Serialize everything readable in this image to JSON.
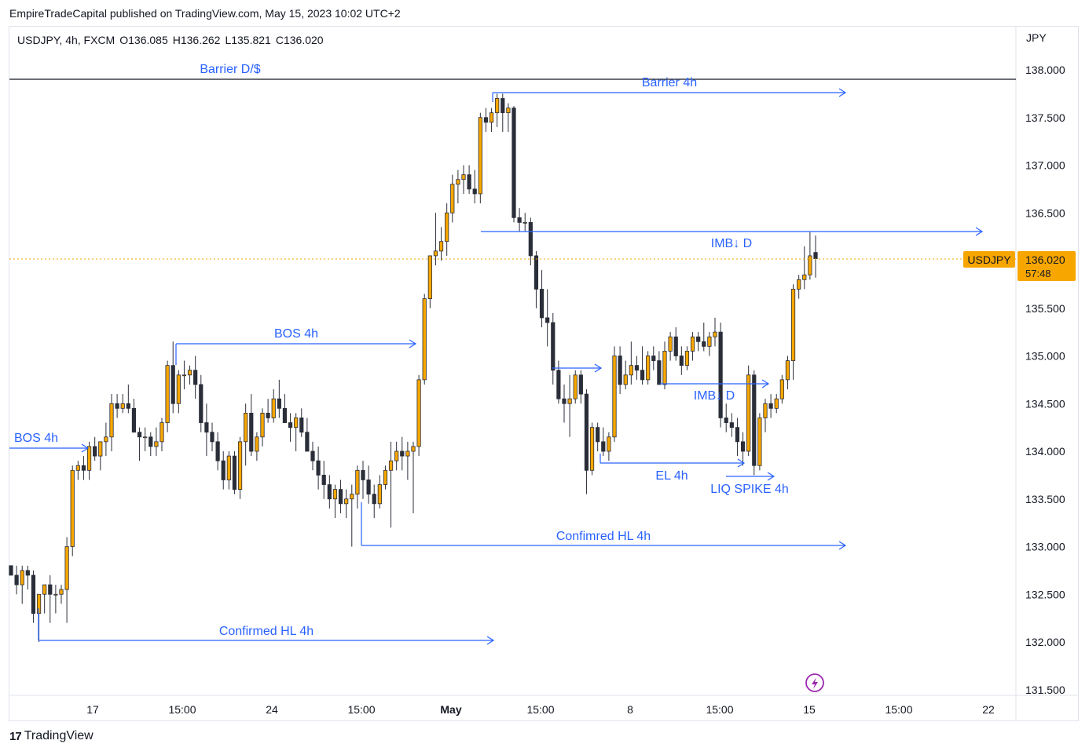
{
  "header": {
    "publish_text": "EmpireTradeCapital published on TradingView.com, May 15, 2023 10:02 UTC+2"
  },
  "footer": {
    "brand": "TradingView",
    "logo_glyph": "17"
  },
  "chart_data": {
    "type": "candlestick",
    "title": "USDJPY, 4h, FXCM",
    "ohlc_label": {
      "o": "O136.085",
      "h": "H136.262",
      "l": "L135.821",
      "c": "C136.020"
    },
    "currency": "JPY",
    "y_ticks": [
      "138.000",
      "137.500",
      "137.000",
      "136.500",
      "135.500",
      "135.000",
      "134.500",
      "134.000",
      "133.500",
      "133.000",
      "132.500",
      "132.000",
      "131.500"
    ],
    "x_ticks": [
      {
        "label": "17",
        "bold": false
      },
      {
        "label": "15:00",
        "bold": false
      },
      {
        "label": "24",
        "bold": false
      },
      {
        "label": "15:00",
        "bold": false
      },
      {
        "label": "May",
        "bold": true
      },
      {
        "label": "15:00",
        "bold": false
      },
      {
        "label": "8",
        "bold": false
      },
      {
        "label": "15:00",
        "bold": false
      },
      {
        "label": "15",
        "bold": false
      },
      {
        "label": "15:00",
        "bold": false
      },
      {
        "label": "22",
        "bold": false
      }
    ],
    "ylim": [
      131.4,
      138.4
    ],
    "last_price": {
      "symbol": "USDJPY",
      "value": "136.020",
      "countdown": "57:48"
    },
    "colors": {
      "up": "#f7a600",
      "down": "#2a2e39",
      "annotation": "#2962ff",
      "price_line": "#f7a600",
      "barrier": "#131722"
    },
    "candles": [
      [
        132.8,
        132.8,
        132.7,
        132.7
      ],
      [
        132.7,
        132.8,
        132.5,
        132.6
      ],
      [
        132.6,
        132.8,
        132.4,
        132.75
      ],
      [
        132.75,
        132.8,
        132.55,
        132.7
      ],
      [
        132.7,
        132.75,
        132.2,
        132.3
      ],
      [
        132.3,
        132.5,
        132.0,
        132.5
      ],
      [
        132.5,
        132.6,
        132.3,
        132.6
      ],
      [
        132.6,
        132.7,
        132.2,
        132.5
      ],
      [
        132.5,
        132.6,
        132.3,
        132.5
      ],
      [
        132.5,
        132.6,
        132.4,
        132.55
      ],
      [
        132.55,
        133.1,
        132.2,
        133.0
      ],
      [
        133.0,
        133.85,
        132.9,
        133.8
      ],
      [
        133.8,
        133.9,
        133.7,
        133.85
      ],
      [
        133.85,
        133.95,
        133.7,
        133.8
      ],
      [
        133.8,
        134.1,
        133.7,
        134.05
      ],
      [
        134.05,
        134.15,
        133.9,
        133.95
      ],
      [
        133.95,
        134.1,
        133.8,
        134.1
      ],
      [
        134.1,
        134.3,
        133.95,
        134.15
      ],
      [
        134.15,
        134.6,
        134.0,
        134.5
      ],
      [
        134.5,
        134.6,
        134.35,
        134.45
      ],
      [
        134.45,
        134.6,
        134.4,
        134.5
      ],
      [
        134.5,
        134.7,
        134.4,
        134.45
      ],
      [
        134.45,
        134.55,
        134.2,
        134.2
      ],
      [
        134.2,
        134.25,
        133.9,
        134.15
      ],
      [
        134.15,
        134.25,
        134.0,
        134.15
      ],
      [
        134.15,
        134.2,
        133.95,
        134.05
      ],
      [
        134.05,
        134.25,
        133.95,
        134.1
      ],
      [
        134.1,
        134.35,
        134.0,
        134.3
      ],
      [
        134.3,
        134.95,
        134.2,
        134.9
      ],
      [
        134.9,
        135.15,
        134.4,
        134.5
      ],
      [
        134.5,
        134.85,
        134.4,
        134.8
      ],
      [
        134.8,
        134.95,
        134.65,
        134.8
      ],
      [
        134.8,
        134.9,
        134.7,
        134.85
      ],
      [
        134.85,
        135.0,
        134.55,
        134.7
      ],
      [
        134.7,
        134.8,
        134.2,
        134.3
      ],
      [
        134.3,
        134.5,
        133.95,
        134.2
      ],
      [
        134.2,
        134.3,
        134.0,
        134.1
      ],
      [
        134.1,
        134.2,
        133.8,
        133.9
      ],
      [
        133.9,
        134.0,
        133.6,
        133.7
      ],
      [
        133.7,
        134.0,
        133.6,
        133.95
      ],
      [
        133.95,
        134.0,
        133.55,
        133.6
      ],
      [
        133.6,
        134.15,
        133.5,
        134.1
      ],
      [
        134.1,
        134.5,
        133.85,
        134.4
      ],
      [
        134.4,
        134.6,
        133.95,
        134.0
      ],
      [
        134.0,
        134.2,
        133.9,
        134.15
      ],
      [
        134.15,
        134.45,
        134.05,
        134.4
      ],
      [
        134.4,
        134.55,
        134.3,
        134.35
      ],
      [
        134.35,
        134.65,
        134.3,
        134.55
      ],
      [
        134.55,
        134.75,
        134.35,
        134.45
      ],
      [
        134.45,
        134.6,
        134.3,
        134.3
      ],
      [
        134.3,
        134.4,
        134.1,
        134.25
      ],
      [
        134.25,
        134.4,
        134.0,
        134.35
      ],
      [
        134.35,
        134.45,
        134.15,
        134.2
      ],
      [
        134.2,
        134.35,
        134.0,
        134.0
      ],
      [
        134.0,
        134.1,
        133.8,
        133.9
      ],
      [
        133.9,
        134.05,
        133.6,
        133.75
      ],
      [
        133.75,
        133.9,
        133.5,
        133.65
      ],
      [
        133.65,
        133.75,
        133.4,
        133.5
      ],
      [
        133.5,
        133.65,
        133.3,
        133.6
      ],
      [
        133.6,
        133.7,
        133.35,
        133.45
      ],
      [
        133.45,
        133.6,
        133.3,
        133.5
      ],
      [
        133.5,
        133.65,
        133.0,
        133.55
      ],
      [
        133.55,
        133.85,
        133.4,
        133.8
      ],
      [
        133.8,
        133.9,
        133.5,
        133.7
      ],
      [
        133.7,
        133.85,
        133.45,
        133.55
      ],
      [
        133.55,
        133.65,
        133.3,
        133.45
      ],
      [
        133.45,
        133.75,
        133.4,
        133.65
      ],
      [
        133.65,
        133.85,
        133.6,
        133.8
      ],
      [
        133.8,
        134.1,
        133.2,
        133.9
      ],
      [
        133.9,
        134.1,
        133.8,
        134.0
      ],
      [
        134.0,
        134.15,
        133.8,
        133.95
      ],
      [
        133.95,
        134.1,
        133.7,
        134.0
      ],
      [
        134.0,
        134.1,
        133.35,
        134.05
      ],
      [
        134.05,
        134.8,
        133.95,
        134.75
      ],
      [
        134.75,
        135.65,
        134.7,
        135.6
      ],
      [
        135.6,
        136.05,
        135.5,
        136.05
      ],
      [
        136.05,
        136.5,
        135.95,
        136.1
      ],
      [
        136.1,
        136.35,
        136.0,
        136.2
      ],
      [
        136.2,
        136.6,
        136.05,
        136.5
      ],
      [
        136.5,
        136.9,
        136.4,
        136.8
      ],
      [
        136.8,
        136.95,
        136.6,
        136.85
      ],
      [
        136.85,
        137.0,
        136.7,
        136.9
      ],
      [
        136.9,
        137.0,
        136.7,
        136.75
      ],
      [
        136.75,
        136.95,
        136.6,
        136.7
      ],
      [
        136.7,
        137.55,
        136.6,
        137.5
      ],
      [
        137.5,
        137.6,
        137.35,
        137.45
      ],
      [
        137.45,
        137.6,
        137.35,
        137.55
      ],
      [
        137.55,
        137.75,
        137.4,
        137.7
      ],
      [
        137.7,
        137.75,
        137.35,
        137.55
      ],
      [
        137.55,
        137.65,
        137.35,
        137.6
      ],
      [
        137.6,
        137.62,
        136.4,
        136.45
      ],
      [
        136.45,
        136.55,
        136.3,
        136.4
      ],
      [
        136.4,
        136.5,
        136.3,
        136.4
      ],
      [
        136.4,
        136.45,
        135.95,
        136.05
      ],
      [
        136.05,
        136.1,
        135.5,
        135.7
      ],
      [
        135.7,
        135.9,
        135.3,
        135.4
      ],
      [
        135.4,
        135.7,
        135.1,
        135.35
      ],
      [
        135.35,
        135.45,
        134.7,
        134.85
      ],
      [
        134.85,
        134.95,
        134.5,
        134.55
      ],
      [
        134.55,
        134.7,
        134.3,
        134.5
      ],
      [
        134.5,
        134.8,
        134.15,
        134.55
      ],
      [
        134.55,
        134.85,
        134.5,
        134.8
      ],
      [
        134.8,
        134.85,
        134.5,
        134.6
      ],
      [
        134.6,
        134.65,
        133.55,
        133.8
      ],
      [
        133.8,
        134.3,
        133.75,
        134.25
      ],
      [
        134.25,
        134.3,
        134.0,
        134.1
      ],
      [
        134.1,
        134.25,
        133.95,
        134.0
      ],
      [
        134.0,
        134.2,
        133.9,
        134.15
      ],
      [
        134.15,
        135.1,
        134.1,
        135.0
      ],
      [
        135.0,
        135.1,
        134.6,
        134.7
      ],
      [
        134.7,
        134.95,
        134.65,
        134.8
      ],
      [
        134.8,
        135.15,
        134.7,
        134.9
      ],
      [
        134.9,
        135.0,
        134.75,
        134.85
      ],
      [
        134.85,
        135.1,
        134.7,
        134.75
      ],
      [
        134.75,
        135.05,
        134.7,
        135.0
      ],
      [
        135.0,
        135.1,
        134.85,
        134.95
      ],
      [
        134.95,
        135.05,
        134.7,
        134.7
      ],
      [
        134.7,
        135.15,
        134.65,
        135.05
      ],
      [
        135.05,
        135.25,
        134.95,
        135.2
      ],
      [
        135.2,
        135.3,
        134.95,
        135.0
      ],
      [
        135.0,
        135.1,
        134.8,
        134.9
      ],
      [
        134.9,
        135.1,
        134.85,
        135.05
      ],
      [
        135.05,
        135.25,
        134.95,
        135.2
      ],
      [
        135.2,
        135.25,
        135.05,
        135.15
      ],
      [
        135.15,
        135.35,
        135.05,
        135.1
      ],
      [
        135.1,
        135.25,
        135.0,
        135.2
      ],
      [
        135.2,
        135.4,
        135.1,
        135.25
      ],
      [
        135.25,
        135.35,
        134.25,
        134.35
      ],
      [
        134.35,
        134.5,
        134.2,
        134.3
      ],
      [
        134.3,
        134.4,
        134.15,
        134.25
      ],
      [
        134.25,
        134.35,
        133.95,
        134.1
      ],
      [
        134.1,
        134.2,
        133.85,
        134.0
      ],
      [
        134.0,
        134.9,
        133.95,
        134.8
      ],
      [
        134.8,
        134.85,
        133.75,
        133.85
      ],
      [
        133.85,
        134.4,
        133.8,
        134.35
      ],
      [
        134.35,
        134.55,
        134.2,
        134.5
      ],
      [
        134.5,
        134.6,
        134.35,
        134.45
      ],
      [
        134.45,
        134.6,
        134.4,
        134.55
      ],
      [
        134.55,
        134.8,
        134.5,
        134.75
      ],
      [
        134.75,
        135.0,
        134.65,
        134.95
      ],
      [
        134.95,
        135.75,
        134.75,
        135.7
      ],
      [
        135.7,
        135.85,
        135.6,
        135.8
      ],
      [
        135.8,
        136.15,
        135.7,
        135.85
      ],
      [
        135.85,
        136.3,
        135.8,
        136.05
      ],
      [
        136.085,
        136.262,
        135.821,
        136.02
      ]
    ]
  },
  "annotations": [
    {
      "label": "Barrier D/$"
    },
    {
      "label": "Barrier 4h"
    },
    {
      "label": "IMB↓ D"
    },
    {
      "label": "BOS 4h"
    },
    {
      "label": "BOS 4h"
    },
    {
      "label": "IMB↓ D"
    },
    {
      "label": "EL 4h"
    },
    {
      "label": "LIQ SPIKE 4h"
    },
    {
      "label": "Confimred HL 4h"
    },
    {
      "label": "Confirmed HL 4h"
    }
  ]
}
